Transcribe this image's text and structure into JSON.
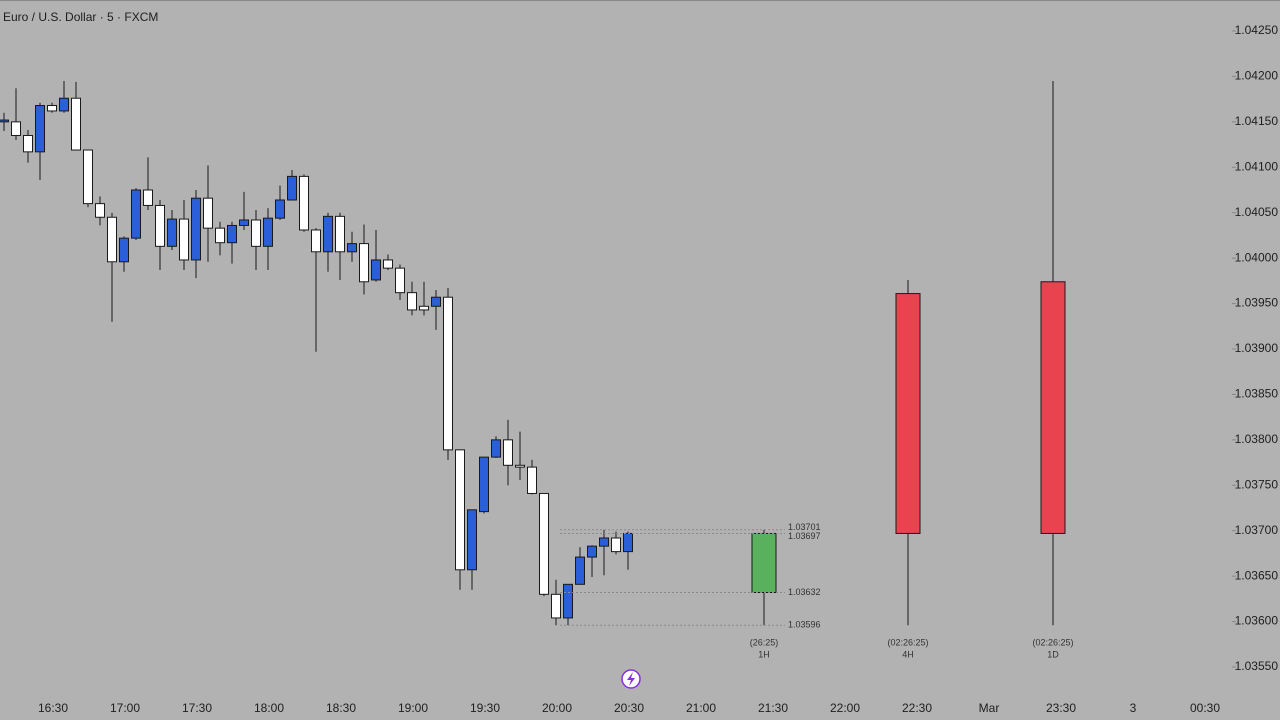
{
  "chart_data": [
    {
      "type": "candlestick",
      "title": "Euro / U.S. Dollar · 5 · FXCM",
      "x": [
        "16:10",
        "16:15",
        "16:20",
        "16:25",
        "16:30",
        "16:35",
        "16:40",
        "16:45",
        "16:50",
        "16:55",
        "17:00",
        "17:05",
        "17:10",
        "17:15",
        "17:20",
        "17:25",
        "17:30",
        "17:35",
        "17:40",
        "17:45",
        "17:50",
        "17:55",
        "18:00",
        "18:05",
        "18:10",
        "18:15",
        "18:20",
        "18:25",
        "18:30",
        "18:35",
        "18:40",
        "18:45",
        "18:50",
        "18:55",
        "19:00",
        "19:05",
        "19:10",
        "19:15",
        "19:20",
        "19:25",
        "19:30",
        "19:35",
        "19:40",
        "19:45",
        "19:50",
        "19:55",
        "20:00",
        "20:05",
        "20:10",
        "20:15",
        "20:20",
        "20:25",
        "20:30"
      ],
      "open": [
        1.0415,
        1.0415,
        1.04135,
        1.04117,
        1.04168,
        1.04162,
        1.04176,
        1.04119,
        1.0406,
        1.04045,
        1.03996,
        1.04022,
        1.04075,
        1.04058,
        1.04013,
        1.04043,
        1.03998,
        1.04066,
        1.04033,
        1.04017,
        1.04036,
        1.04042,
        1.04013,
        1.04044,
        1.04064,
        1.0409,
        1.04031,
        1.04007,
        1.04046,
        1.04007,
        1.04016,
        1.03976,
        1.03998,
        1.03989,
        1.03962,
        1.03947,
        1.03947,
        1.03957,
        1.03789,
        1.03657,
        1.03721,
        1.03781,
        1.038,
        1.03772,
        1.0377,
        1.03741,
        1.0363,
        1.03604,
        1.03641,
        1.03671,
        1.03683,
        1.03692,
        1.03677
      ],
      "high": [
        1.0416,
        1.04187,
        1.04141,
        1.04171,
        1.04171,
        1.04195,
        1.04194,
        1.04119,
        1.04068,
        1.0405,
        1.04024,
        1.04077,
        1.04111,
        1.04064,
        1.04053,
        1.04064,
        1.04075,
        1.04102,
        1.0404,
        1.0404,
        1.04073,
        1.04053,
        1.04055,
        1.0408,
        1.04097,
        1.04092,
        1.04033,
        1.0405,
        1.0405,
        1.04029,
        1.04037,
        1.04031,
        1.04004,
        1.03993,
        1.03974,
        1.03974,
        1.03965,
        1.03967,
        1.03789,
        1.03723,
        1.03781,
        1.03804,
        1.03822,
        1.03809,
        1.03778,
        1.03741,
        1.03646,
        1.03641,
        1.03682,
        1.03684,
        1.03701,
        1.03699,
        1.03699
      ],
      "low": [
        1.0414,
        1.0413,
        1.04105,
        1.04086,
        1.0416,
        1.0416,
        1.04119,
        1.04056,
        1.04036,
        1.0393,
        1.03985,
        1.0402,
        1.04053,
        1.03987,
        1.04009,
        1.03987,
        1.03978,
        1.03996,
        1.04003,
        1.03994,
        1.04031,
        1.03987,
        1.03987,
        1.04042,
        1.04064,
        1.04029,
        1.03897,
        1.03985,
        1.03976,
        1.03996,
        1.0396,
        1.03974,
        1.03987,
        1.03954,
        1.03937,
        1.03937,
        1.03921,
        1.03778,
        1.03635,
        1.03635,
        1.03719,
        1.0378,
        1.0375,
        1.03756,
        1.0374,
        1.03628,
        1.03596,
        1.03596,
        1.03641,
        1.03649,
        1.03651,
        1.03674,
        1.03657
      ],
      "close": [
        1.04152,
        1.04135,
        1.04117,
        1.04168,
        1.04162,
        1.04176,
        1.04119,
        1.0406,
        1.04045,
        1.03996,
        1.04022,
        1.04075,
        1.04058,
        1.04013,
        1.04043,
        1.03998,
        1.04066,
        1.04033,
        1.04017,
        1.04036,
        1.04042,
        1.04013,
        1.04044,
        1.04064,
        1.0409,
        1.04031,
        1.04007,
        1.04046,
        1.04007,
        1.04016,
        1.03974,
        1.03998,
        1.03989,
        1.03962,
        1.03943,
        1.03943,
        1.03957,
        1.03789,
        1.03657,
        1.03723,
        1.03781,
        1.038,
        1.03772,
        1.0377,
        1.03741,
        1.0363,
        1.03604,
        1.03641,
        1.03671,
        1.03683,
        1.03692,
        1.03677,
        1.03697
      ],
      "up_color": "#2b5fd9",
      "down_color": "#ffffff",
      "xticks": [
        "16:30",
        "17:00",
        "17:30",
        "18:00",
        "18:30",
        "19:00",
        "19:30",
        "20:00",
        "20:30",
        "21:00",
        "21:30",
        "22:00",
        "22:30",
        "Mar",
        "23:30",
        "3",
        "00:30"
      ],
      "ylim": [
        1.0355,
        1.0425
      ],
      "yticks": [
        {
          "value": 1.0355,
          "label": "1.03550"
        },
        {
          "value": 1.036,
          "label": "1.03600"
        },
        {
          "value": 1.0365,
          "label": "1.03650"
        },
        {
          "value": 1.037,
          "label": "1.03700"
        },
        {
          "value": 1.0375,
          "label": "1.03750"
        },
        {
          "value": 1.038,
          "label": "1.03800"
        },
        {
          "value": 1.0385,
          "label": "1.03850"
        },
        {
          "value": 1.039,
          "label": "1.03900"
        },
        {
          "value": 1.0395,
          "label": "1.03950"
        },
        {
          "value": 1.04,
          "label": "1.04000"
        },
        {
          "value": 1.0405,
          "label": "1.04050"
        },
        {
          "value": 1.041,
          "label": "1.04100"
        },
        {
          "value": 1.0415,
          "label": "1.04150"
        },
        {
          "value": 1.042,
          "label": "1.04200"
        },
        {
          "value": 1.0425,
          "label": "1.04250"
        }
      ]
    },
    {
      "type": "candlestick",
      "categories": [
        "1H",
        "4H",
        "1D"
      ],
      "countdowns": [
        "(26:25)",
        "(02:26:25)",
        "(02:26:25)"
      ],
      "open": [
        1.03632,
        1.03961,
        1.03974
      ],
      "high": [
        1.03701,
        1.03976,
        1.04195
      ],
      "low": [
        1.03596,
        1.03596,
        1.03596
      ],
      "close": [
        1.03697,
        1.03697,
        1.03697
      ],
      "colors": [
        "#59b15d",
        "#e8434f",
        "#e8434f"
      ]
    }
  ]
}
